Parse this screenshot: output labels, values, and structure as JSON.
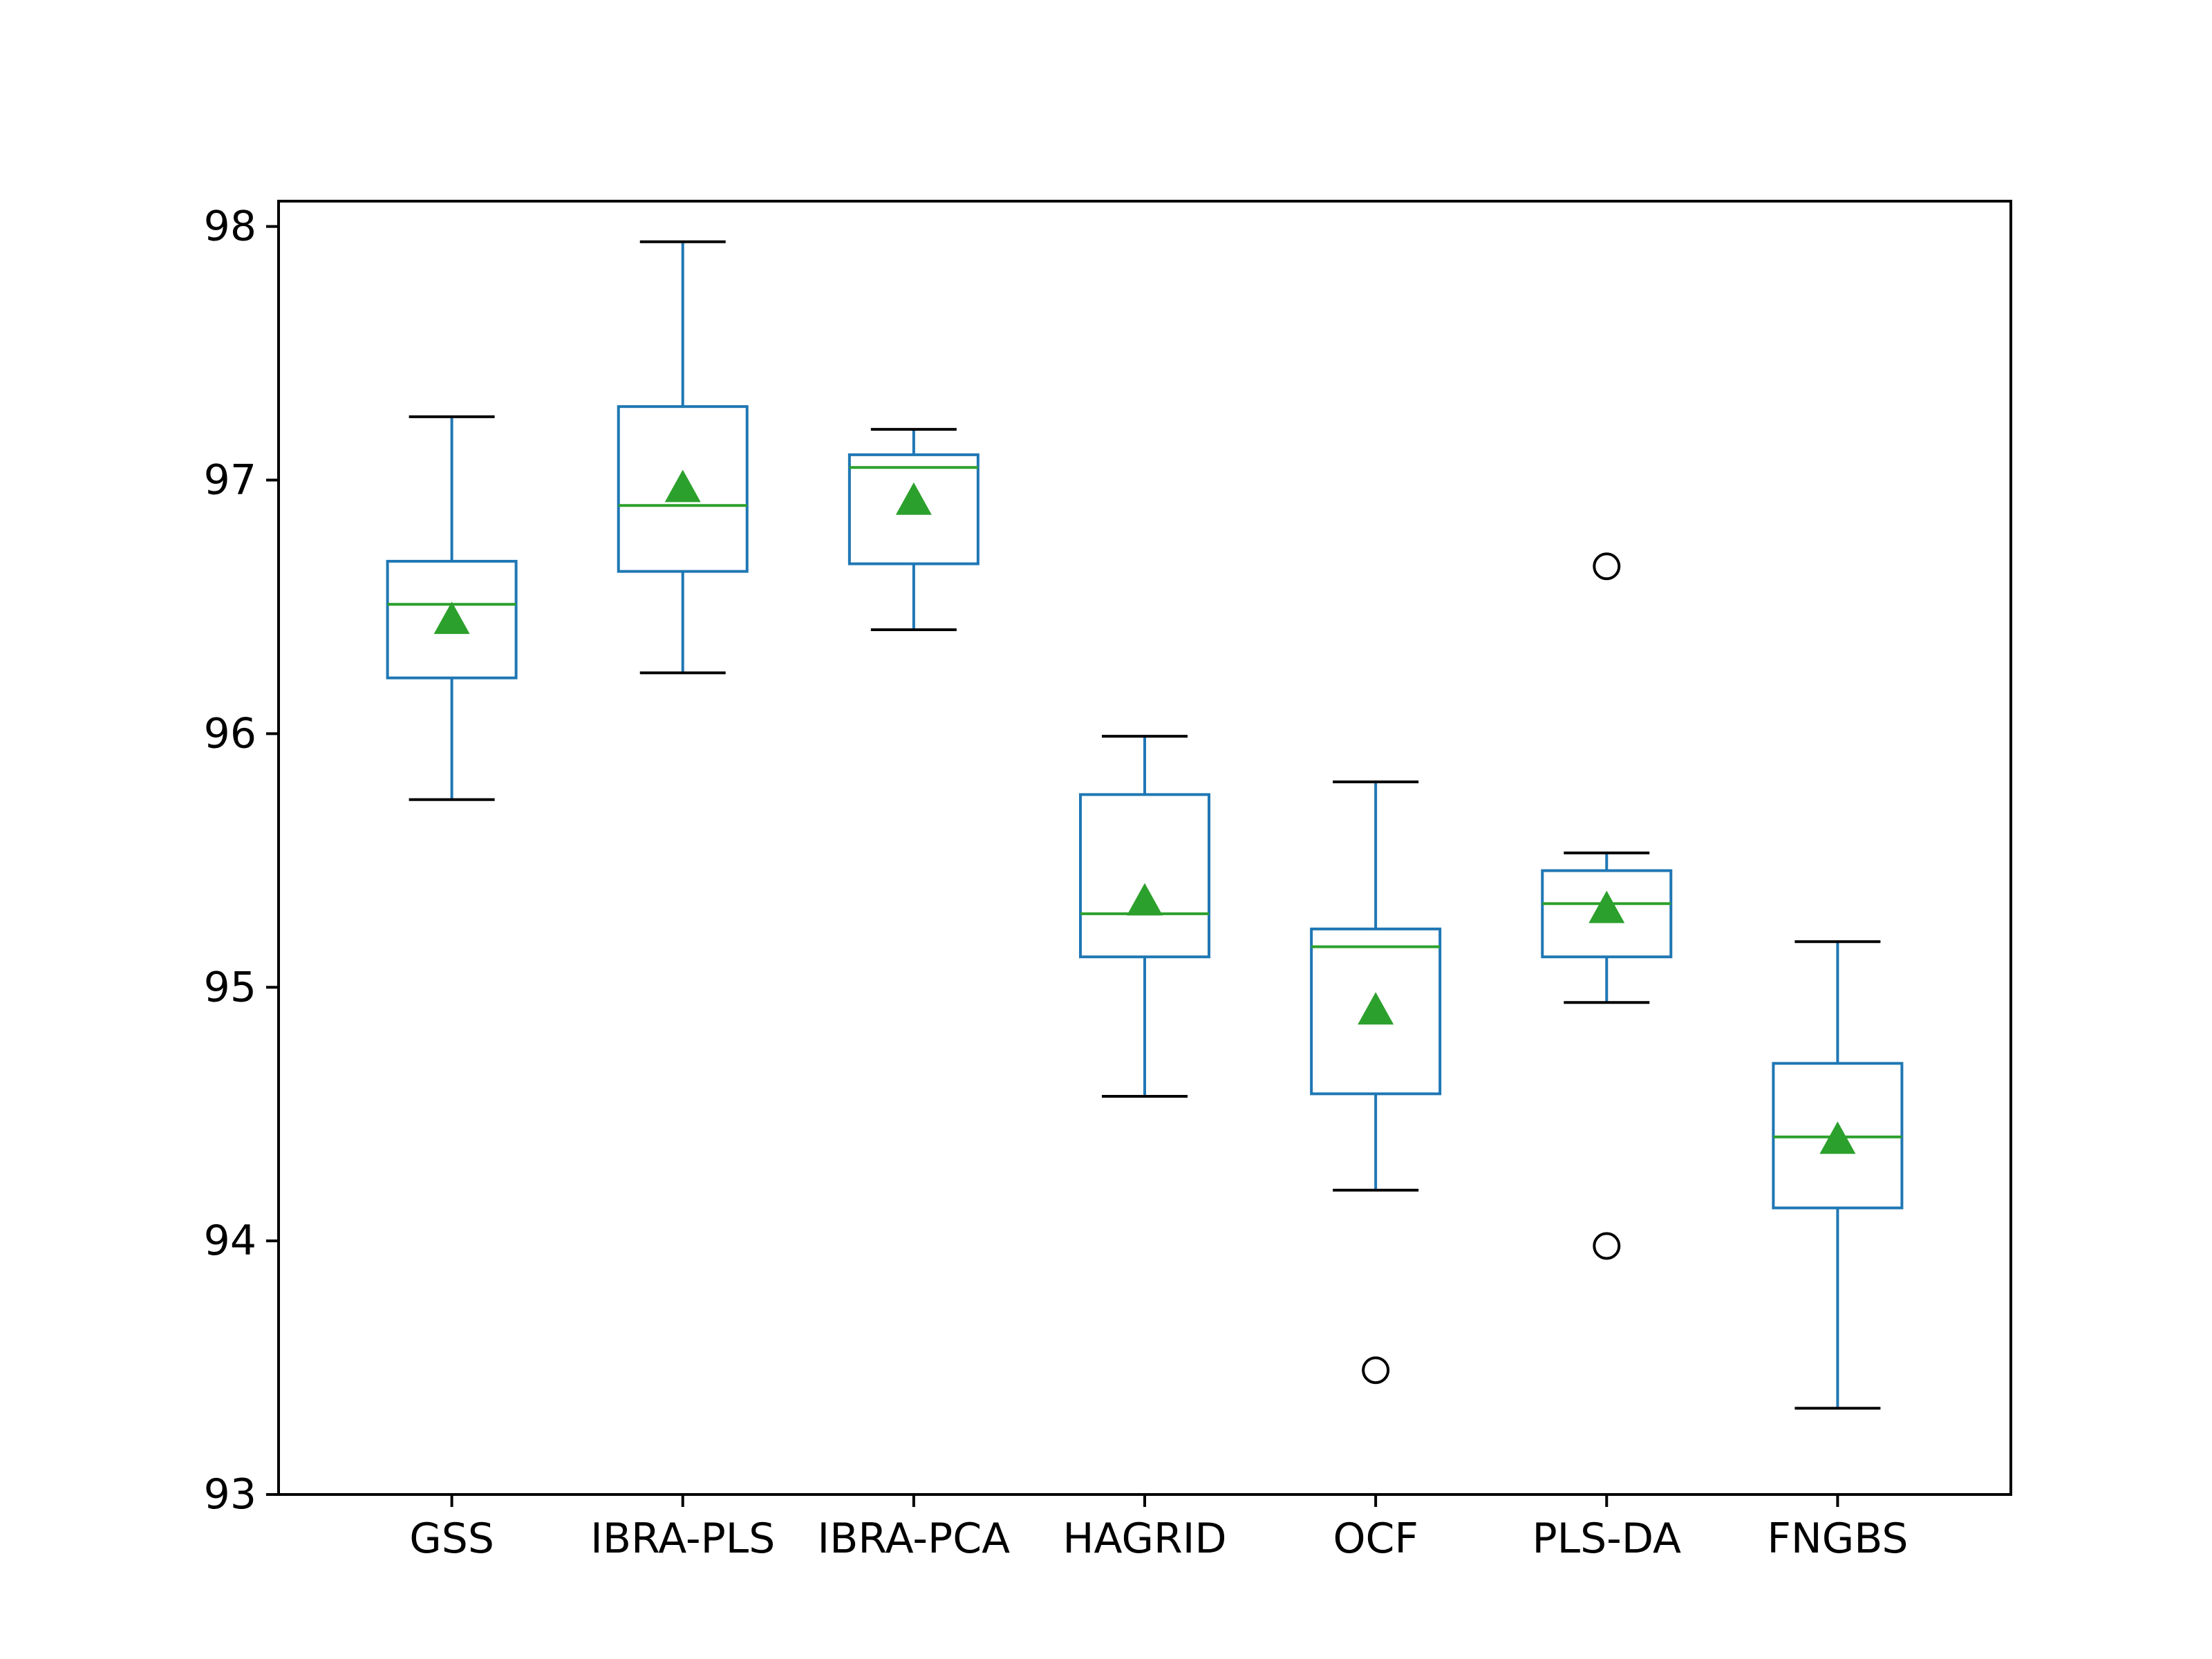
{
  "chart_data": {
    "type": "box",
    "title": "",
    "xlabel": "",
    "ylabel": "",
    "ylim": [
      93,
      98.1
    ],
    "yticks": [
      93,
      94,
      95,
      96,
      97,
      98
    ],
    "grid": false,
    "legend": "none",
    "colors": {
      "box": "#1f77b4",
      "median": "#2ca02c",
      "mean_marker": "#2ca02c",
      "caps": "#000000",
      "outliers": "#000000"
    },
    "categories": [
      "GSS",
      "IBRA-PLS",
      "IBRA-PCA",
      "HAGRID",
      "OCF",
      "PLS-DA",
      "FNGBS"
    ],
    "boxes": [
      {
        "whisker_low": 95.74,
        "q1": 96.22,
        "median": 96.51,
        "q3": 96.68,
        "whisker_high": 97.25,
        "mean": 96.45,
        "outliers": []
      },
      {
        "whisker_low": 96.24,
        "q1": 96.64,
        "median": 96.9,
        "q3": 97.29,
        "whisker_high": 97.94,
        "mean": 96.97,
        "outliers": []
      },
      {
        "whisker_low": 96.41,
        "q1": 96.67,
        "median": 97.05,
        "q3": 97.1,
        "whisker_high": 97.2,
        "mean": 96.92,
        "outliers": []
      },
      {
        "whisker_low": 94.57,
        "q1": 95.12,
        "median": 95.29,
        "q3": 95.76,
        "whisker_high": 95.99,
        "mean": 95.34,
        "outliers": []
      },
      {
        "whisker_low": 94.2,
        "q1": 94.58,
        "median": 95.16,
        "q3": 95.23,
        "whisker_high": 95.81,
        "mean": 94.91,
        "outliers": [
          93.49
        ]
      },
      {
        "whisker_low": 94.94,
        "q1": 95.12,
        "median": 95.33,
        "q3": 95.46,
        "whisker_high": 95.53,
        "mean": 95.31,
        "outliers": [
          96.66,
          93.98
        ]
      },
      {
        "whisker_low": 93.34,
        "q1": 94.13,
        "median": 94.41,
        "q3": 94.7,
        "whisker_high": 95.18,
        "mean": 94.4,
        "outliers": []
      }
    ]
  }
}
